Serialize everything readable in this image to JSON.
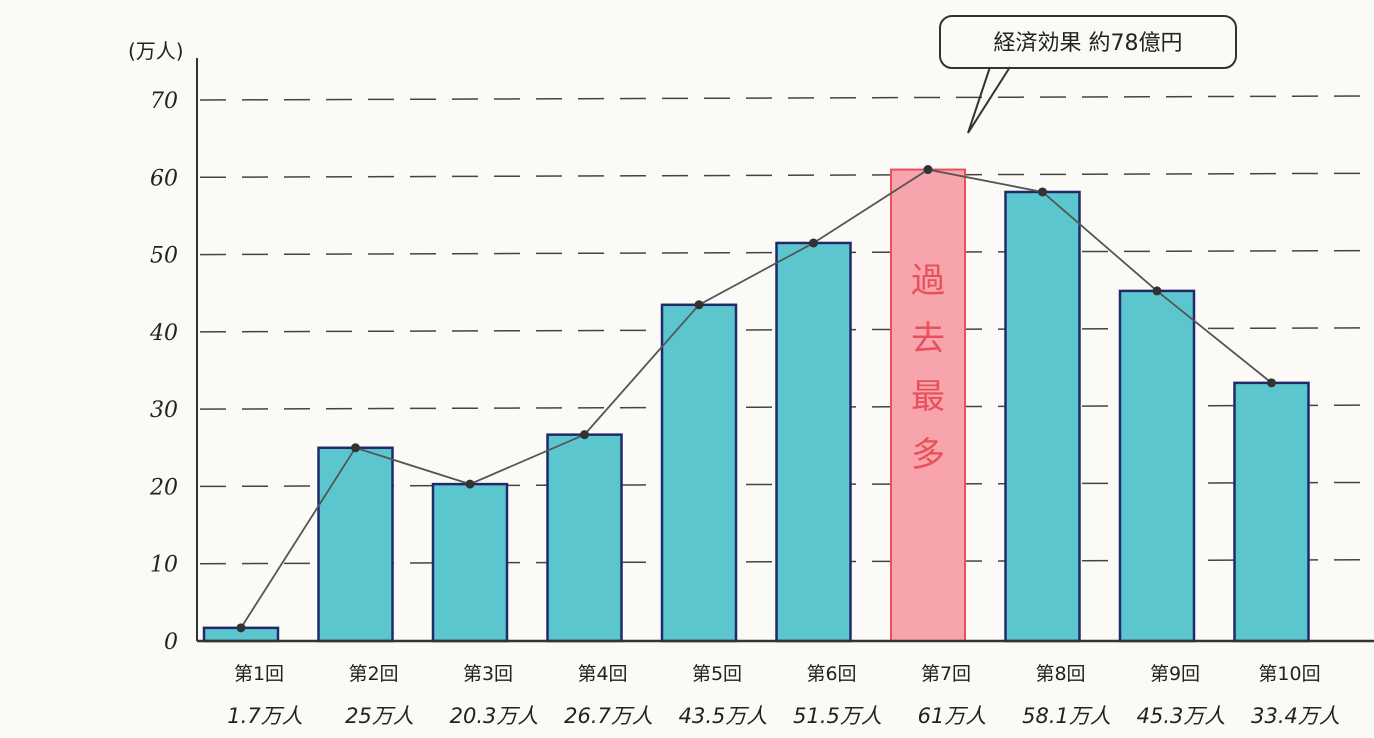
{
  "chart_data": {
    "type": "bar",
    "unit_label": "(万人)",
    "y_ticks": [
      "0",
      "10",
      "20",
      "30",
      "40",
      "50",
      "60",
      "70"
    ],
    "ylim": [
      0,
      72
    ],
    "grid": true,
    "categories": [
      "第1回",
      "第2回",
      "第3回",
      "第4回",
      "第5回",
      "第6回",
      "第7回",
      "第8回",
      "第9回",
      "第10回"
    ],
    "values": [
      1.7,
      25,
      20.3,
      26.7,
      43.5,
      51.5,
      61,
      58.1,
      45.3,
      33.4
    ],
    "value_labels": [
      "1.7万人",
      "25万人",
      "20.3万人",
      "26.7万人",
      "43.5万人",
      "51.5万人",
      "61万人",
      "58.1万人",
      "45.3万人",
      "33.4万人"
    ],
    "line_overlay": true,
    "highlight_index": 6,
    "highlight_text": [
      "過",
      "去",
      "最",
      "多"
    ],
    "callout": "経済効果 約78億円",
    "colors": {
      "bar": "#5cc6cf",
      "bar_outline": "#1f2a6b",
      "highlight": "#f7a4ac",
      "highlight_outline": "#e8505b",
      "highlight_text": "#e8505b",
      "line": "#555555",
      "grid": "#444444"
    }
  }
}
